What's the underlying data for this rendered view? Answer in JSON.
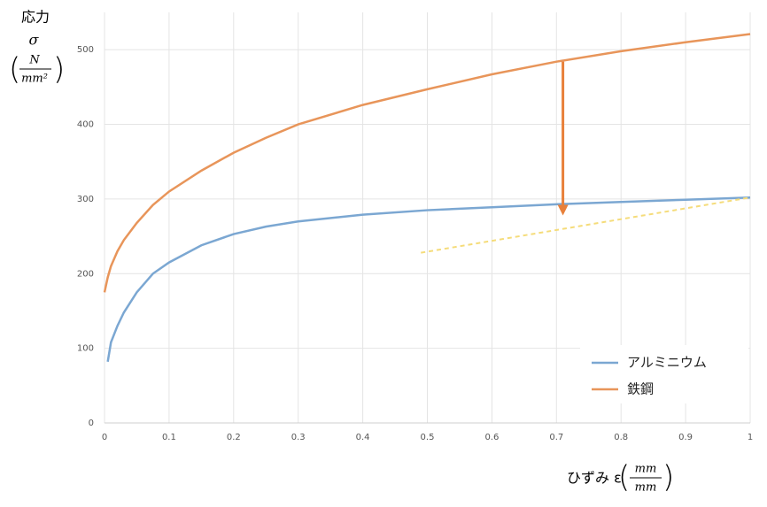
{
  "chart_data": {
    "type": "line",
    "y_label": "応力",
    "y_symbol": "σ",
    "y_unit_numerator": "N",
    "y_unit_denominator": "mm²",
    "x_label": "ひずみ ε",
    "x_unit_numerator": "mm",
    "x_unit_denominator": "mm",
    "x": [
      0,
      0.005,
      0.01,
      0.02,
      0.03,
      0.05,
      0.075,
      0.1,
      0.15,
      0.2,
      0.25,
      0.3,
      0.4,
      0.5,
      0.6,
      0.7,
      0.8,
      0.9,
      1
    ],
    "series": [
      {
        "name": "アルミニウム",
        "color": "#7ba7d2",
        "values": [
          null,
          82,
          108,
          130,
          148,
          175,
          200,
          215,
          238,
          253,
          263,
          270,
          279,
          285,
          289,
          293,
          296,
          299,
          302
        ]
      },
      {
        "name": "鉄鋼",
        "color": "#e8955a",
        "values": [
          175,
          195,
          210,
          230,
          245,
          268,
          292,
          310,
          338,
          362,
          382,
          400,
          426,
          447,
          467,
          484,
          498,
          510,
          521
        ]
      }
    ],
    "guide_line": {
      "x": [
        0.49,
        1
      ],
      "y": [
        228,
        302
      ],
      "color": "#f5dc7a"
    },
    "arrow": {
      "x": 0.71,
      "y_from": 484,
      "y_to": 278,
      "color": "#e8803a"
    },
    "xlim": [
      0,
      1
    ],
    "xticks": [
      0,
      0.1,
      0.2,
      0.3,
      0.4,
      0.5,
      0.6,
      0.7,
      0.8,
      0.9,
      1
    ],
    "ylim": [
      0,
      550
    ],
    "yticks": [
      0,
      100,
      200,
      300,
      400,
      500
    ],
    "grid": true,
    "legend": "lower right"
  }
}
